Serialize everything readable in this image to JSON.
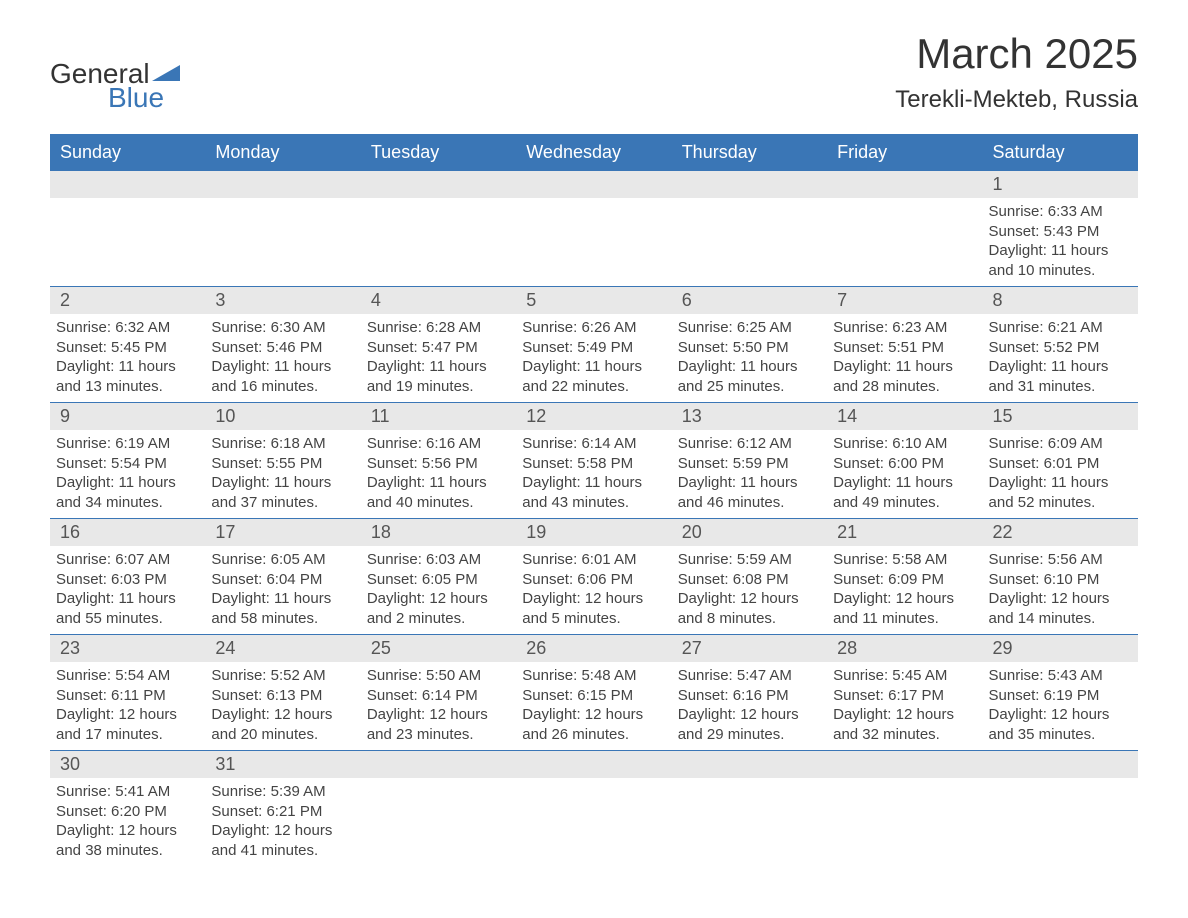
{
  "header": {
    "logo_general": "General",
    "logo_blue": "Blue",
    "month_title": "March 2025",
    "location": "Terekli-Mekteb, Russia",
    "logo_triangle_color": "#3a76b6"
  },
  "colors": {
    "header_bg": "#3a76b6",
    "header_text": "#ffffff",
    "day_bar_bg": "#e8e8e8",
    "text": "#444444",
    "row_border": "#3a76b6"
  },
  "weekdays": [
    "Sunday",
    "Monday",
    "Tuesday",
    "Wednesday",
    "Thursday",
    "Friday",
    "Saturday"
  ],
  "weeks": [
    [
      null,
      null,
      null,
      null,
      null,
      null,
      {
        "day": "1",
        "sunrise": "Sunrise: 6:33 AM",
        "sunset": "Sunset: 5:43 PM",
        "daylight1": "Daylight: 11 hours",
        "daylight2": "and 10 minutes."
      }
    ],
    [
      {
        "day": "2",
        "sunrise": "Sunrise: 6:32 AM",
        "sunset": "Sunset: 5:45 PM",
        "daylight1": "Daylight: 11 hours",
        "daylight2": "and 13 minutes."
      },
      {
        "day": "3",
        "sunrise": "Sunrise: 6:30 AM",
        "sunset": "Sunset: 5:46 PM",
        "daylight1": "Daylight: 11 hours",
        "daylight2": "and 16 minutes."
      },
      {
        "day": "4",
        "sunrise": "Sunrise: 6:28 AM",
        "sunset": "Sunset: 5:47 PM",
        "daylight1": "Daylight: 11 hours",
        "daylight2": "and 19 minutes."
      },
      {
        "day": "5",
        "sunrise": "Sunrise: 6:26 AM",
        "sunset": "Sunset: 5:49 PM",
        "daylight1": "Daylight: 11 hours",
        "daylight2": "and 22 minutes."
      },
      {
        "day": "6",
        "sunrise": "Sunrise: 6:25 AM",
        "sunset": "Sunset: 5:50 PM",
        "daylight1": "Daylight: 11 hours",
        "daylight2": "and 25 minutes."
      },
      {
        "day": "7",
        "sunrise": "Sunrise: 6:23 AM",
        "sunset": "Sunset: 5:51 PM",
        "daylight1": "Daylight: 11 hours",
        "daylight2": "and 28 minutes."
      },
      {
        "day": "8",
        "sunrise": "Sunrise: 6:21 AM",
        "sunset": "Sunset: 5:52 PM",
        "daylight1": "Daylight: 11 hours",
        "daylight2": "and 31 minutes."
      }
    ],
    [
      {
        "day": "9",
        "sunrise": "Sunrise: 6:19 AM",
        "sunset": "Sunset: 5:54 PM",
        "daylight1": "Daylight: 11 hours",
        "daylight2": "and 34 minutes."
      },
      {
        "day": "10",
        "sunrise": "Sunrise: 6:18 AM",
        "sunset": "Sunset: 5:55 PM",
        "daylight1": "Daylight: 11 hours",
        "daylight2": "and 37 minutes."
      },
      {
        "day": "11",
        "sunrise": "Sunrise: 6:16 AM",
        "sunset": "Sunset: 5:56 PM",
        "daylight1": "Daylight: 11 hours",
        "daylight2": "and 40 minutes."
      },
      {
        "day": "12",
        "sunrise": "Sunrise: 6:14 AM",
        "sunset": "Sunset: 5:58 PM",
        "daylight1": "Daylight: 11 hours",
        "daylight2": "and 43 minutes."
      },
      {
        "day": "13",
        "sunrise": "Sunrise: 6:12 AM",
        "sunset": "Sunset: 5:59 PM",
        "daylight1": "Daylight: 11 hours",
        "daylight2": "and 46 minutes."
      },
      {
        "day": "14",
        "sunrise": "Sunrise: 6:10 AM",
        "sunset": "Sunset: 6:00 PM",
        "daylight1": "Daylight: 11 hours",
        "daylight2": "and 49 minutes."
      },
      {
        "day": "15",
        "sunrise": "Sunrise: 6:09 AM",
        "sunset": "Sunset: 6:01 PM",
        "daylight1": "Daylight: 11 hours",
        "daylight2": "and 52 minutes."
      }
    ],
    [
      {
        "day": "16",
        "sunrise": "Sunrise: 6:07 AM",
        "sunset": "Sunset: 6:03 PM",
        "daylight1": "Daylight: 11 hours",
        "daylight2": "and 55 minutes."
      },
      {
        "day": "17",
        "sunrise": "Sunrise: 6:05 AM",
        "sunset": "Sunset: 6:04 PM",
        "daylight1": "Daylight: 11 hours",
        "daylight2": "and 58 minutes."
      },
      {
        "day": "18",
        "sunrise": "Sunrise: 6:03 AM",
        "sunset": "Sunset: 6:05 PM",
        "daylight1": "Daylight: 12 hours",
        "daylight2": "and 2 minutes."
      },
      {
        "day": "19",
        "sunrise": "Sunrise: 6:01 AM",
        "sunset": "Sunset: 6:06 PM",
        "daylight1": "Daylight: 12 hours",
        "daylight2": "and 5 minutes."
      },
      {
        "day": "20",
        "sunrise": "Sunrise: 5:59 AM",
        "sunset": "Sunset: 6:08 PM",
        "daylight1": "Daylight: 12 hours",
        "daylight2": "and 8 minutes."
      },
      {
        "day": "21",
        "sunrise": "Sunrise: 5:58 AM",
        "sunset": "Sunset: 6:09 PM",
        "daylight1": "Daylight: 12 hours",
        "daylight2": "and 11 minutes."
      },
      {
        "day": "22",
        "sunrise": "Sunrise: 5:56 AM",
        "sunset": "Sunset: 6:10 PM",
        "daylight1": "Daylight: 12 hours",
        "daylight2": "and 14 minutes."
      }
    ],
    [
      {
        "day": "23",
        "sunrise": "Sunrise: 5:54 AM",
        "sunset": "Sunset: 6:11 PM",
        "daylight1": "Daylight: 12 hours",
        "daylight2": "and 17 minutes."
      },
      {
        "day": "24",
        "sunrise": "Sunrise: 5:52 AM",
        "sunset": "Sunset: 6:13 PM",
        "daylight1": "Daylight: 12 hours",
        "daylight2": "and 20 minutes."
      },
      {
        "day": "25",
        "sunrise": "Sunrise: 5:50 AM",
        "sunset": "Sunset: 6:14 PM",
        "daylight1": "Daylight: 12 hours",
        "daylight2": "and 23 minutes."
      },
      {
        "day": "26",
        "sunrise": "Sunrise: 5:48 AM",
        "sunset": "Sunset: 6:15 PM",
        "daylight1": "Daylight: 12 hours",
        "daylight2": "and 26 minutes."
      },
      {
        "day": "27",
        "sunrise": "Sunrise: 5:47 AM",
        "sunset": "Sunset: 6:16 PM",
        "daylight1": "Daylight: 12 hours",
        "daylight2": "and 29 minutes."
      },
      {
        "day": "28",
        "sunrise": "Sunrise: 5:45 AM",
        "sunset": "Sunset: 6:17 PM",
        "daylight1": "Daylight: 12 hours",
        "daylight2": "and 32 minutes."
      },
      {
        "day": "29",
        "sunrise": "Sunrise: 5:43 AM",
        "sunset": "Sunset: 6:19 PM",
        "daylight1": "Daylight: 12 hours",
        "daylight2": "and 35 minutes."
      }
    ],
    [
      {
        "day": "30",
        "sunrise": "Sunrise: 5:41 AM",
        "sunset": "Sunset: 6:20 PM",
        "daylight1": "Daylight: 12 hours",
        "daylight2": "and 38 minutes."
      },
      {
        "day": "31",
        "sunrise": "Sunrise: 5:39 AM",
        "sunset": "Sunset: 6:21 PM",
        "daylight1": "Daylight: 12 hours",
        "daylight2": "and 41 minutes."
      },
      null,
      null,
      null,
      null,
      null
    ]
  ]
}
